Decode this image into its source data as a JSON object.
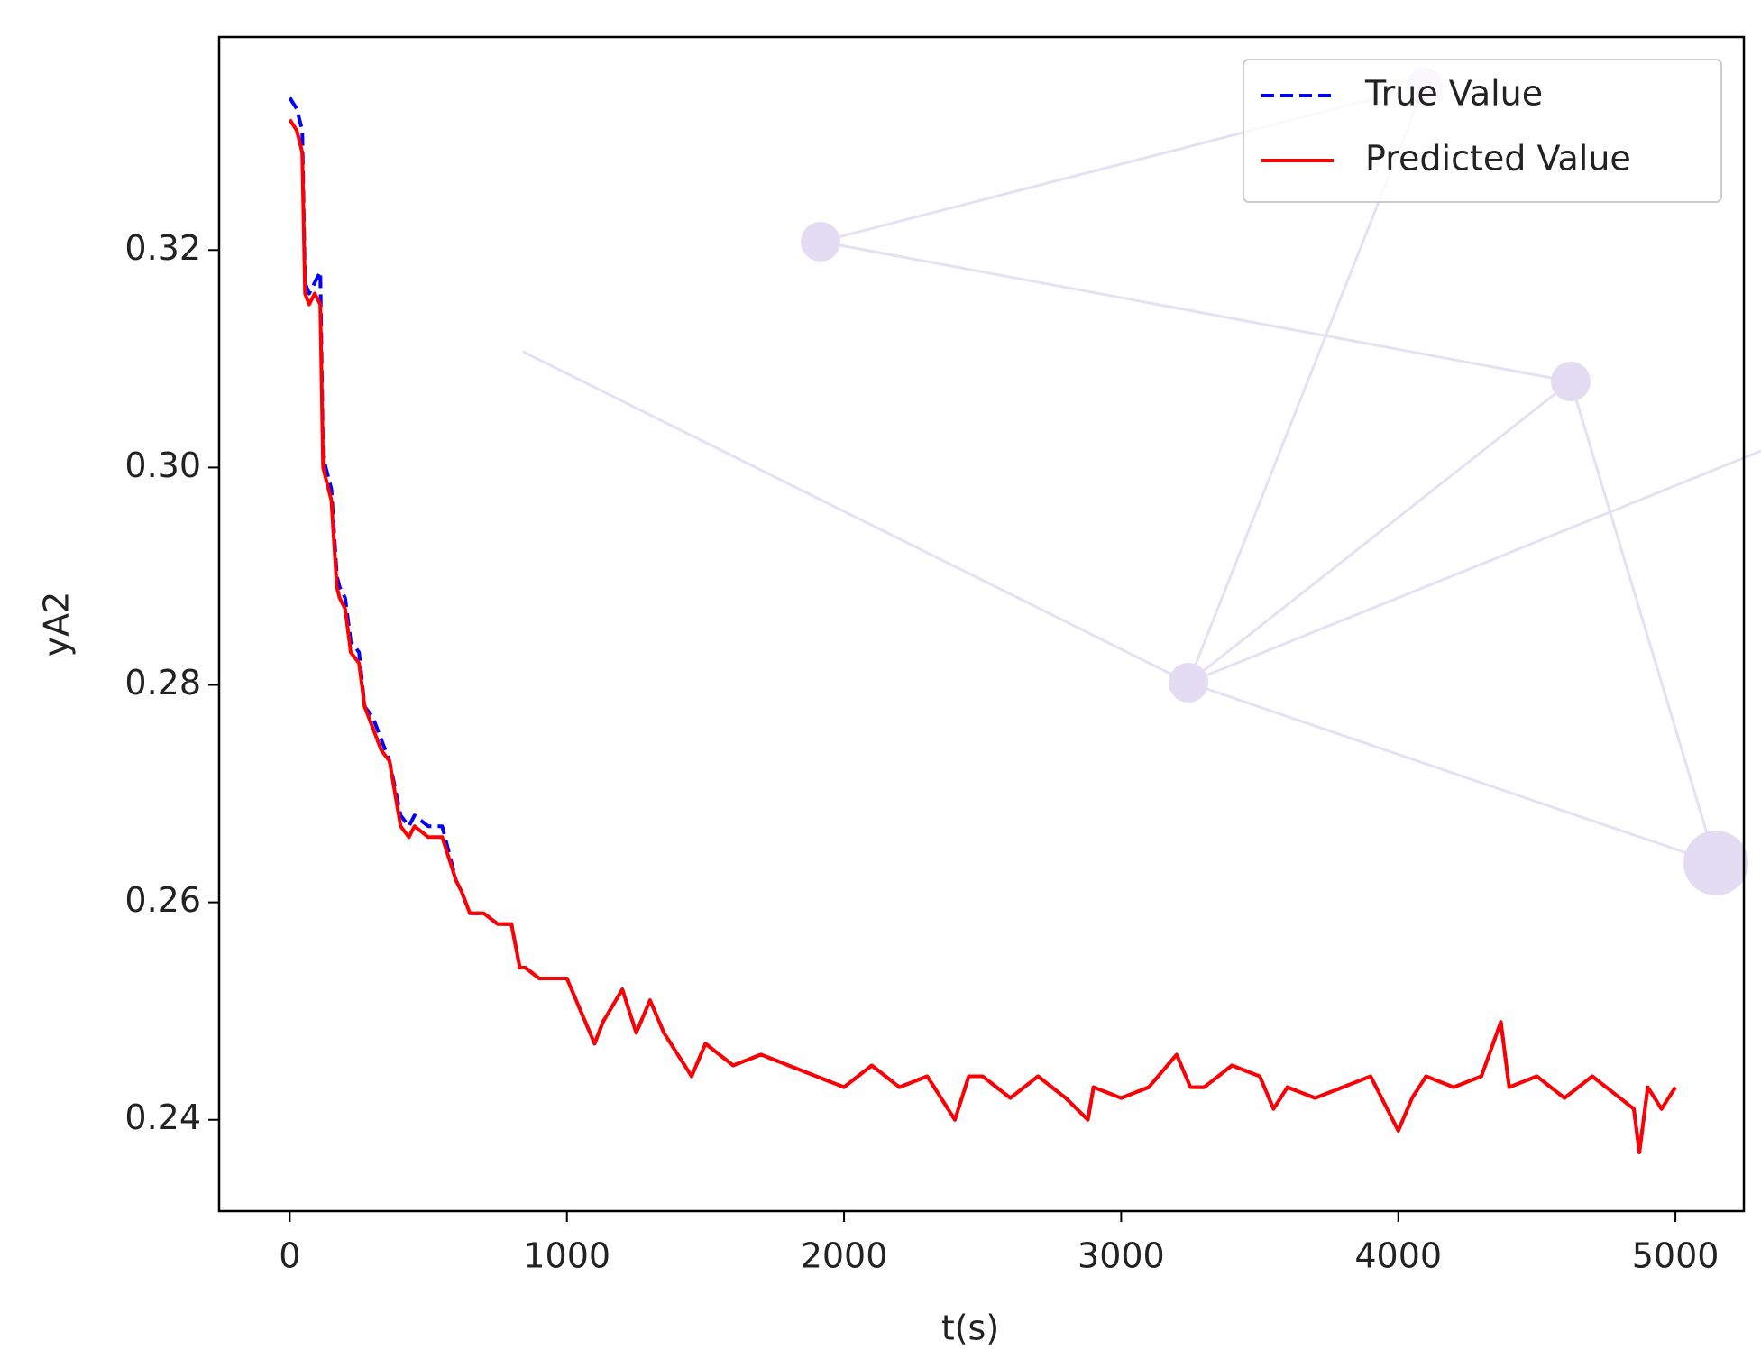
{
  "chart_data": {
    "type": "line",
    "x_label": "t(s)",
    "y_label": "yA2",
    "x": [
      0,
      25,
      45,
      55,
      70,
      90,
      110,
      120,
      130,
      150,
      170,
      180,
      200,
      220,
      250,
      270,
      300,
      330,
      360,
      400,
      430,
      450,
      500,
      550,
      600,
      620,
      650,
      700,
      750,
      800,
      830,
      850,
      900,
      1000,
      1100,
      1130,
      1200,
      1250,
      1300,
      1350,
      1400,
      1450,
      1500,
      1600,
      1700,
      1800,
      1900,
      2000,
      2100,
      2200,
      2300,
      2400,
      2450,
      2500,
      2600,
      2700,
      2800,
      2880,
      2900,
      3000,
      3100,
      3200,
      3250,
      3300,
      3400,
      3500,
      3550,
      3600,
      3700,
      3800,
      3900,
      4000,
      4050,
      4100,
      4200,
      4300,
      4370,
      4400,
      4500,
      4600,
      4700,
      4800,
      4850,
      4870,
      4900,
      4950,
      5000
    ],
    "series": [
      {
        "name": "True Value",
        "color": "#0000ff",
        "dashed": true,
        "values": [
          0.334,
          0.333,
          0.331,
          0.317,
          0.316,
          0.317,
          0.318,
          0.301,
          0.3,
          0.298,
          0.29,
          0.289,
          0.288,
          0.284,
          0.283,
          0.278,
          0.277,
          0.275,
          0.273,
          0.268,
          0.267,
          0.268,
          0.267,
          0.267,
          0.262,
          0.261,
          0.259,
          0.259,
          0.258,
          0.258,
          0.254,
          0.254,
          0.253,
          0.253,
          0.247,
          0.249,
          0.252,
          0.248,
          0.251,
          0.248,
          0.246,
          0.244,
          0.247,
          0.245,
          0.246,
          0.245,
          0.244,
          0.243,
          0.245,
          0.243,
          0.244,
          0.24,
          0.244,
          0.244,
          0.242,
          0.244,
          0.242,
          0.24,
          0.243,
          0.242,
          0.243,
          0.246,
          0.243,
          0.243,
          0.245,
          0.244,
          0.241,
          0.243,
          0.242,
          0.243,
          0.244,
          0.239,
          0.242,
          0.244,
          0.243,
          0.244,
          0.249,
          0.243,
          0.244,
          0.242,
          0.244,
          0.242,
          0.241,
          0.237,
          0.243,
          0.241,
          0.243
        ]
      },
      {
        "name": "Predicted Value",
        "color": "#ff0000",
        "dashed": false,
        "values": [
          0.332,
          0.331,
          0.329,
          0.316,
          0.315,
          0.316,
          0.315,
          0.3,
          0.299,
          0.297,
          0.289,
          0.288,
          0.287,
          0.283,
          0.282,
          0.278,
          0.276,
          0.274,
          0.273,
          0.267,
          0.266,
          0.267,
          0.266,
          0.266,
          0.262,
          0.261,
          0.259,
          0.259,
          0.258,
          0.258,
          0.254,
          0.254,
          0.253,
          0.253,
          0.247,
          0.249,
          0.252,
          0.248,
          0.251,
          0.248,
          0.246,
          0.244,
          0.247,
          0.245,
          0.246,
          0.245,
          0.244,
          0.243,
          0.245,
          0.243,
          0.244,
          0.24,
          0.244,
          0.244,
          0.242,
          0.244,
          0.242,
          0.24,
          0.243,
          0.242,
          0.243,
          0.246,
          0.243,
          0.243,
          0.245,
          0.244,
          0.241,
          0.243,
          0.242,
          0.243,
          0.244,
          0.239,
          0.242,
          0.244,
          0.243,
          0.244,
          0.249,
          0.243,
          0.244,
          0.242,
          0.244,
          0.242,
          0.241,
          0.237,
          0.243,
          0.241,
          0.243
        ]
      }
    ],
    "xlim": [
      -255,
      5247
    ],
    "ylim": [
      0.2316,
      0.3396
    ],
    "xticks": [
      0,
      1000,
      2000,
      3000,
      4000,
      5000
    ],
    "yticks": [
      0.24,
      0.26,
      0.28,
      {
        "value": 0.3,
        "label": "0.30"
      },
      0.32
    ],
    "grid": false,
    "legend": "upper right"
  }
}
